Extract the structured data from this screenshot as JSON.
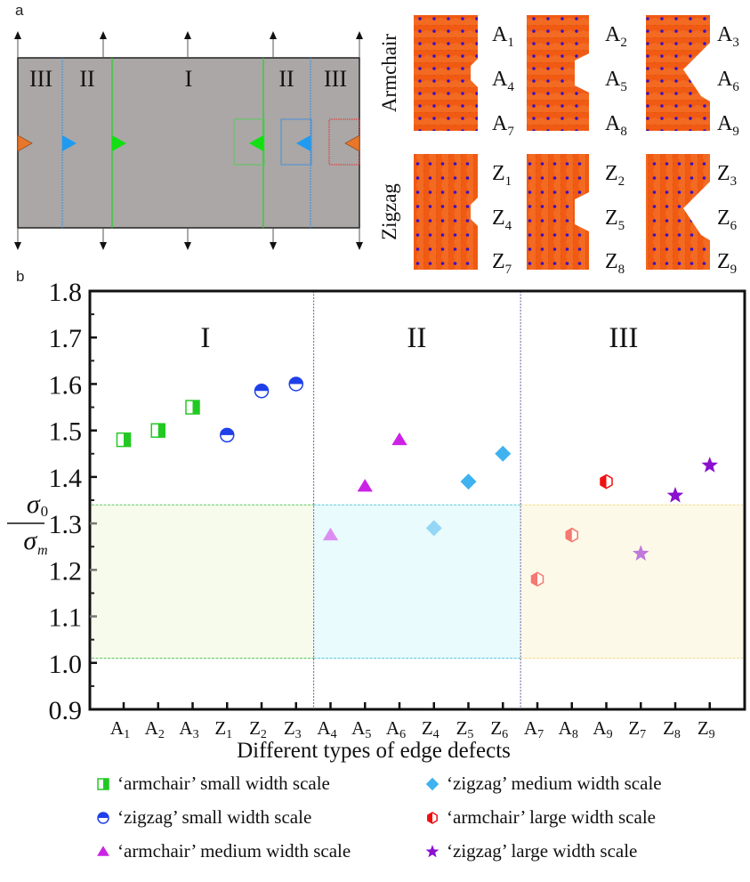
{
  "panel_a": {
    "label": "a",
    "schematic": {
      "region_labels": [
        "III",
        "II",
        "I",
        "II",
        "III"
      ],
      "region_colors": {
        "III": "#e8762b",
        "II": "#1e9bf0",
        "I": "#12e012"
      },
      "frame_color": "#aaa7a6"
    },
    "atomic_models": {
      "armchair": {
        "row_label": "Armchair",
        "labels": [
          [
            "A",
            "1"
          ],
          [
            "A",
            "4"
          ],
          [
            "A",
            "7"
          ],
          [
            "A",
            "2"
          ],
          [
            "A",
            "5"
          ],
          [
            "A",
            "8"
          ],
          [
            "A",
            "3"
          ],
          [
            "A",
            "6"
          ],
          [
            "A",
            "9"
          ]
        ]
      },
      "zigzag": {
        "row_label": "Zigzag",
        "labels": [
          [
            "Z",
            "1"
          ],
          [
            "Z",
            "4"
          ],
          [
            "Z",
            "7"
          ],
          [
            "Z",
            "2"
          ],
          [
            "Z",
            "5"
          ],
          [
            "Z",
            "8"
          ],
          [
            "Z",
            "3"
          ],
          [
            "Z",
            "6"
          ],
          [
            "Z",
            "9"
          ]
        ]
      },
      "atom_color": "#f05a12",
      "bond_color": "#3a10c0"
    }
  },
  "panel_b": {
    "label": "b"
  },
  "chart_data": {
    "type": "scatter",
    "title": "",
    "xlabel": "Different types of edge defects",
    "ylabel_numerator": "σ",
    "ylabel_numerator_sub": "0",
    "ylabel_denominator": "σ",
    "ylabel_denominator_sub": "m",
    "ylim": [
      0.9,
      1.8
    ],
    "yticks": [
      "0.9",
      "1.0",
      "1.1",
      "1.2",
      "1.3",
      "1.4",
      "1.5",
      "1.6",
      "1.7",
      "1.8"
    ],
    "categories": [
      {
        "base": "A",
        "sub": "1"
      },
      {
        "base": "A",
        "sub": "2"
      },
      {
        "base": "A",
        "sub": "3"
      },
      {
        "base": "Z",
        "sub": "1"
      },
      {
        "base": "Z",
        "sub": "2"
      },
      {
        "base": "Z",
        "sub": "3"
      },
      {
        "base": "A",
        "sub": "4"
      },
      {
        "base": "A",
        "sub": "5"
      },
      {
        "base": "A",
        "sub": "6"
      },
      {
        "base": "Z",
        "sub": "4"
      },
      {
        "base": "Z",
        "sub": "5"
      },
      {
        "base": "Z",
        "sub": "6"
      },
      {
        "base": "A",
        "sub": "7"
      },
      {
        "base": "A",
        "sub": "8"
      },
      {
        "base": "A",
        "sub": "9"
      },
      {
        "base": "Z",
        "sub": "7"
      },
      {
        "base": "Z",
        "sub": "8"
      },
      {
        "base": "Z",
        "sub": "9"
      }
    ],
    "regions": [
      {
        "label": "I",
        "start": 0,
        "end": 6,
        "band_color": "#f6fbec",
        "band_line": "#5fc35f"
      },
      {
        "label": "II",
        "start": 6,
        "end": 12,
        "band_color": "#e9fbfd",
        "band_line": "#5cc8d8"
      },
      {
        "label": "III",
        "start": 12,
        "end": 18,
        "band_color": "#fdf9e8",
        "band_line": "#f0dc8c"
      }
    ],
    "band_range": [
      1.01,
      1.34
    ],
    "divider_color": "#6a5aa0",
    "series": [
      {
        "name": "'armchair' small width scale",
        "legend": "‘armchair’ small width scale",
        "marker": "square-half-right",
        "color": "#22c922",
        "points": [
          {
            "x": 0,
            "y": 1.48,
            "opacity": 1
          },
          {
            "x": 1,
            "y": 1.5,
            "opacity": 1
          },
          {
            "x": 2,
            "y": 1.55,
            "opacity": 1
          }
        ]
      },
      {
        "name": "'zigzag' small width scale",
        "legend": "‘zigzag’ small width scale",
        "marker": "circle-half-top",
        "color": "#1f3fe8",
        "points": [
          {
            "x": 3,
            "y": 1.49,
            "opacity": 1
          },
          {
            "x": 4,
            "y": 1.585,
            "opacity": 1
          },
          {
            "x": 5,
            "y": 1.6,
            "opacity": 1
          }
        ]
      },
      {
        "name": "'armchair' medium width scale",
        "legend": "‘armchair’ medium width scale",
        "marker": "triangle",
        "color": "#cc22e6",
        "points": [
          {
            "x": 6,
            "y": 1.275,
            "opacity": 0.5
          },
          {
            "x": 7,
            "y": 1.38,
            "opacity": 1
          },
          {
            "x": 8,
            "y": 1.48,
            "opacity": 1
          }
        ]
      },
      {
        "name": "'zigzag' medium width scale",
        "legend": "‘zigzag’ medium width scale",
        "marker": "diamond",
        "color": "#3fb2f0",
        "points": [
          {
            "x": 9,
            "y": 1.29,
            "opacity": 0.5
          },
          {
            "x": 10,
            "y": 1.39,
            "opacity": 1
          },
          {
            "x": 11,
            "y": 1.45,
            "opacity": 1
          }
        ]
      },
      {
        "name": "'armchair' large width scale",
        "legend": "‘armchair’ large width scale",
        "marker": "hexagon-half-left",
        "color": "#f01010",
        "points": [
          {
            "x": 12,
            "y": 1.18,
            "opacity": 0.55
          },
          {
            "x": 13,
            "y": 1.275,
            "opacity": 0.55
          },
          {
            "x": 14,
            "y": 1.39,
            "opacity": 1
          }
        ]
      },
      {
        "name": "'zigzag' large width scale",
        "legend": "‘zigzag’ large width scale",
        "marker": "star",
        "color": "#8a10d0",
        "points": [
          {
            "x": 15,
            "y": 1.235,
            "opacity": 0.55
          },
          {
            "x": 16,
            "y": 1.36,
            "opacity": 1
          },
          {
            "x": 17,
            "y": 1.425,
            "opacity": 1
          }
        ]
      }
    ],
    "legend_placement": "bottom",
    "grid": false
  }
}
